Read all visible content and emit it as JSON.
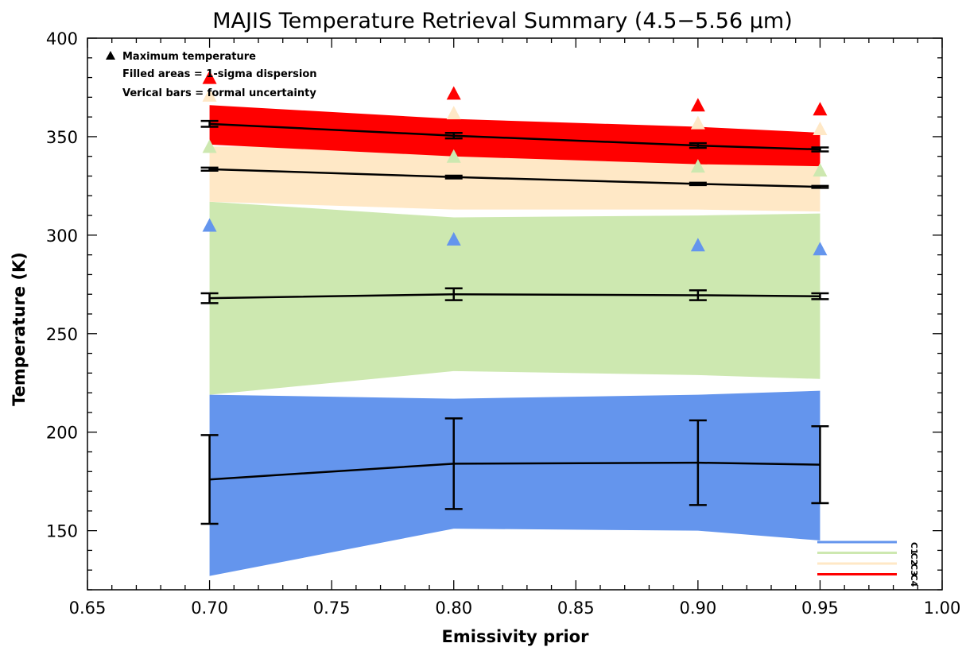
{
  "chart_data": {
    "type": "line",
    "title": "MAJIS Temperature Retrieval Summary (4.5−5.56 μm)",
    "xlabel": "Emissivity prior",
    "ylabel": "Temperature (K)",
    "xlim": [
      0.65,
      1.0
    ],
    "ylim": [
      120,
      400
    ],
    "x_ticks": [
      0.65,
      0.7,
      0.75,
      0.8,
      0.85,
      0.9,
      0.95,
      1.0
    ],
    "x_tick_labels": [
      "0.65",
      "0.70",
      "0.75",
      "0.80",
      "0.85",
      "0.90",
      "0.95",
      "1.00"
    ],
    "y_ticks": [
      150,
      200,
      250,
      300,
      350,
      400
    ],
    "y_tick_labels": [
      "150",
      "200",
      "250",
      "300",
      "350",
      "400"
    ],
    "x": [
      0.7,
      0.8,
      0.9,
      0.95
    ],
    "annotations": [
      "Maximum temperature",
      "Filled areas = 1-sigma dispersion",
      "Verical bars = formal uncertainty"
    ],
    "series": [
      {
        "name": "C1",
        "color": "#6495ED",
        "mean": [
          176,
          184,
          184.5,
          183.5
        ],
        "formal_uncertainty": [
          22.5,
          23,
          21.5,
          19.5
        ],
        "dispersion_low": [
          127,
          151,
          150,
          145
        ],
        "dispersion_high": [
          219,
          217,
          219,
          221
        ],
        "max_temperature": [
          305,
          298,
          295,
          293
        ]
      },
      {
        "name": "C2",
        "color": "#CDE8B0",
        "mean": [
          268,
          270,
          269.5,
          269
        ],
        "formal_uncertainty": [
          2.5,
          3,
          2.5,
          1.5
        ],
        "dispersion_low": [
          219,
          231,
          229,
          227
        ],
        "dispersion_high": [
          317,
          309,
          310,
          311
        ],
        "max_temperature": [
          345,
          340,
          335,
          333
        ]
      },
      {
        "name": "C3",
        "color": "#FFE8C6",
        "mean": [
          333.5,
          329.5,
          326,
          324.5
        ],
        "formal_uncertainty": [
          0.8,
          0.7,
          0.6,
          0.5
        ],
        "dispersion_low": [
          317,
          313,
          313,
          312
        ],
        "dispersion_high": [
          345,
          345,
          341,
          337
        ],
        "max_temperature": [
          371,
          362,
          357,
          354
        ]
      },
      {
        "name": "C4",
        "color": "#FF0000",
        "mean": [
          356.5,
          350.5,
          345.5,
          343.5
        ],
        "formal_uncertainty": [
          1.5,
          1.4,
          1.2,
          1.0
        ],
        "dispersion_low": [
          346,
          340,
          336,
          335
        ],
        "dispersion_high": [
          366,
          359,
          355,
          352
        ],
        "max_temperature": [
          380,
          372,
          366,
          364
        ]
      }
    ]
  }
}
